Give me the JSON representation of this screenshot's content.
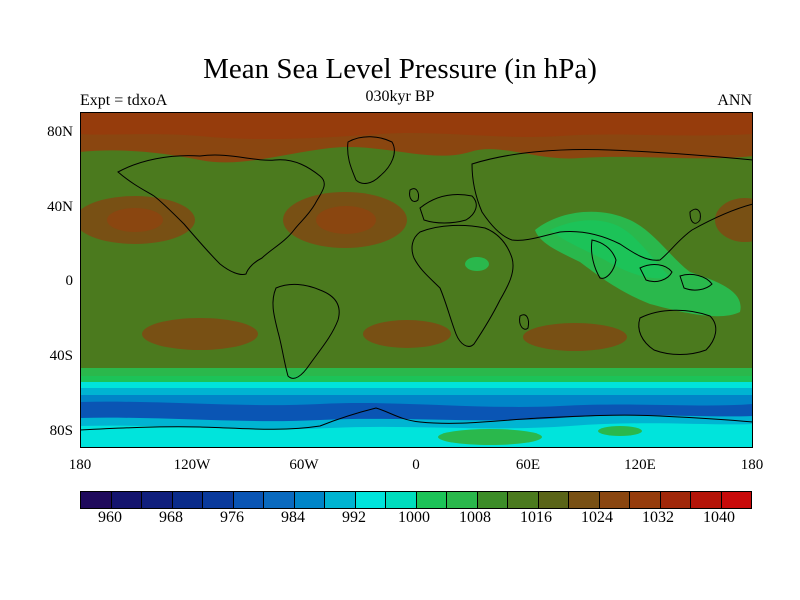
{
  "title": "Mean Sea Level Pressure (in hPa)",
  "subtitle": "030kyr BP",
  "left_label": "Expt = tdxoA",
  "right_label": "ANN",
  "lat_ticks": [
    "80N",
    "40N",
    "0",
    "40S",
    "80S"
  ],
  "lon_ticks": [
    "180",
    "120W",
    "60W",
    "0",
    "60E",
    "120E",
    "180"
  ],
  "colorbar": {
    "colors": [
      "#1f0a5c",
      "#14146e",
      "#0f1e7c",
      "#0a2b8a",
      "#0a3a9c",
      "#0a55b4",
      "#0a6abf",
      "#0085c8",
      "#00b4d2",
      "#00e4dc",
      "#00ddbe",
      "#1cc358",
      "#2ab84c",
      "#3c8c28",
      "#4b7a1e",
      "#5a6418",
      "#785014",
      "#8a4610",
      "#963c0c",
      "#a0280a",
      "#b41408",
      "#c80a0a"
    ],
    "labels": [
      "960",
      "968",
      "976",
      "984",
      "992",
      "1000",
      "1008",
      "1016",
      "1024",
      "1032",
      "1040"
    ]
  },
  "map_colors": {
    "base": "#4b7a1e",
    "high": "#785014",
    "higher": "#8a4610",
    "polar_high": "#963c0c",
    "mid": "#5a6418",
    "low1": "#2ab84c",
    "low2": "#1cc358",
    "cyan": "#00e4dc",
    "teal": "#00b4d2",
    "blue1": "#0085c8",
    "blue2": "#0a6abf",
    "blue3": "#0a55b4",
    "land": "#000000"
  }
}
